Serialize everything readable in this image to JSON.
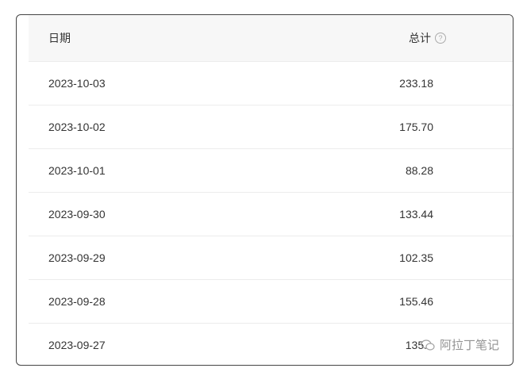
{
  "table": {
    "headers": {
      "date": "日期",
      "total": "总计",
      "help_icon": "question-circle-icon"
    },
    "rows": [
      {
        "date": "2023-10-03",
        "total": "233.18"
      },
      {
        "date": "2023-10-02",
        "total": "175.70"
      },
      {
        "date": "2023-10-01",
        "total": "88.28"
      },
      {
        "date": "2023-09-30",
        "total": "133.44"
      },
      {
        "date": "2023-09-29",
        "total": "102.35"
      },
      {
        "date": "2023-09-28",
        "total": "155.46"
      },
      {
        "date": "2023-09-27",
        "total": "135."
      }
    ]
  },
  "watermark": {
    "text": "阿拉丁笔记",
    "icon": "wechat-icon"
  }
}
